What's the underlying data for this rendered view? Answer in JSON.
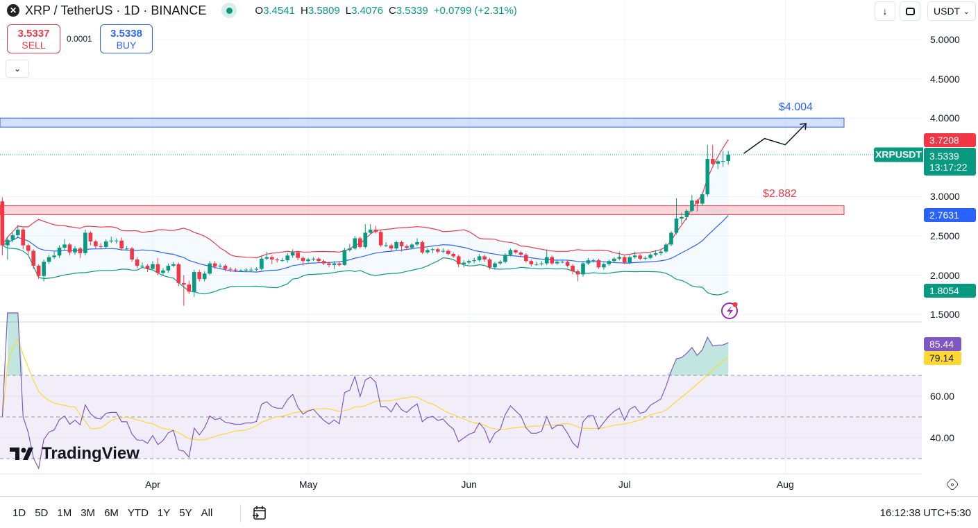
{
  "header": {
    "symbol_icon": "xrp-logo-icon",
    "title": "XRP / TetherUS · 1D · BINANCE",
    "market_status": "open",
    "ohlc": {
      "o_label": "O",
      "o": "3.4541",
      "h_label": "H",
      "h": "3.5809",
      "l_label": "L",
      "l": "3.4076",
      "c_label": "C",
      "c": "3.5339",
      "change": "+0.0799 (+2.31%)"
    }
  },
  "trade": {
    "sell_price": "3.5337",
    "sell_label": "SELL",
    "spread": "0.0001",
    "buy_price": "3.5338",
    "buy_label": "BUY"
  },
  "toolbar_right": {
    "download_icon": "arrow-down-icon",
    "fullscreen_icon": "fullscreen-icon",
    "currency": "USDT"
  },
  "colors": {
    "up": "#089981",
    "down": "#f23645",
    "bb_basis": "#2962ff",
    "bb_upper": "#f23645",
    "bb_lower": "#089981",
    "rsi": "#7e57c2",
    "rsi_ma": "#fdd835",
    "resistance_zone": "#2962ff",
    "support_zone": "#f23645"
  },
  "axis_tags": {
    "bb_upper": "3.7208",
    "symbol": "XRPUSDT",
    "last": "3.5339",
    "countdown": "13:17:22",
    "bb_basis": "2.7631",
    "bb_lower": "1.8054",
    "rsi": "85.44",
    "rsi_ma": "79.14"
  },
  "annotations": {
    "resistance": {
      "label": "$4.004",
      "top": 4.0,
      "bottom": 3.885
    },
    "support": {
      "label": "$2.882",
      "top": 2.885,
      "bottom": 2.77
    },
    "projection_arrow": [
      [
        "07-24",
        3.55
      ],
      [
        "07-28",
        3.74
      ],
      [
        "08-01",
        3.66
      ],
      [
        "08-05",
        3.93
      ]
    ]
  },
  "time_axis": {
    "labels": [
      "Apr",
      "May",
      "Jun",
      "Jul",
      "Aug"
    ],
    "settings_icon": "gear-icon"
  },
  "bottom_bar": {
    "ranges": [
      "1D",
      "5D",
      "1M",
      "3M",
      "6M",
      "YTD",
      "1Y",
      "5Y",
      "All"
    ],
    "goto_icon": "calendar-goto-icon",
    "clock": "16:12:38 UTC+5:30"
  },
  "branding": {
    "text": "TradingView"
  },
  "chart_data": {
    "type": "candlestick",
    "indicators": [
      "Bollinger Bands (20, 2)",
      "RSI (14) with MA (14)"
    ],
    "price_ticks": [
      5.0,
      4.5,
      4.0,
      3.0,
      2.5,
      2.0,
      1.5
    ],
    "rsi_ticks": [
      60,
      40
    ],
    "rsi_levels": [
      70,
      50,
      30
    ],
    "ylim": [
      1.5,
      5.0
    ],
    "grid": true,
    "candles_format": [
      "date",
      "open",
      "high",
      "low",
      "close"
    ],
    "candles": [
      [
        "03-03",
        2.94,
        2.99,
        2.25,
        2.38
      ],
      [
        "03-04",
        2.38,
        2.49,
        2.2,
        2.45
      ],
      [
        "03-05",
        2.45,
        2.54,
        2.42,
        2.51
      ],
      [
        "03-06",
        2.51,
        2.64,
        2.48,
        2.58
      ],
      [
        "03-07",
        2.58,
        2.6,
        2.33,
        2.38
      ],
      [
        "03-08",
        2.38,
        2.4,
        2.26,
        2.31
      ],
      [
        "03-09",
        2.31,
        2.33,
        2.08,
        2.12
      ],
      [
        "03-10",
        2.12,
        2.14,
        1.95,
        1.99
      ],
      [
        "03-11",
        1.99,
        2.2,
        1.92,
        2.17
      ],
      [
        "03-12",
        2.17,
        2.26,
        2.14,
        2.23
      ],
      [
        "03-13",
        2.23,
        2.3,
        2.21,
        2.25
      ],
      [
        "03-14",
        2.25,
        2.38,
        2.22,
        2.35
      ],
      [
        "03-15",
        2.35,
        2.46,
        2.32,
        2.39
      ],
      [
        "03-16",
        2.39,
        2.41,
        2.25,
        2.29
      ],
      [
        "03-17",
        2.29,
        2.37,
        2.26,
        2.34
      ],
      [
        "03-18",
        2.34,
        2.36,
        2.22,
        2.28
      ],
      [
        "03-19",
        2.28,
        2.58,
        2.25,
        2.54
      ],
      [
        "03-20",
        2.54,
        2.56,
        2.38,
        2.43
      ],
      [
        "03-21",
        2.43,
        2.45,
        2.34,
        2.37
      ],
      [
        "03-22",
        2.37,
        2.41,
        2.34,
        2.36
      ],
      [
        "03-23",
        2.36,
        2.46,
        2.34,
        2.43
      ],
      [
        "03-24",
        2.43,
        2.49,
        2.41,
        2.44
      ],
      [
        "03-25",
        2.44,
        2.47,
        2.4,
        2.44
      ],
      [
        "03-26",
        2.44,
        2.48,
        2.31,
        2.34
      ],
      [
        "03-27",
        2.34,
        2.37,
        2.31,
        2.34
      ],
      [
        "03-28",
        2.34,
        2.36,
        2.17,
        2.2
      ],
      [
        "03-29",
        2.2,
        2.23,
        2.09,
        2.12
      ],
      [
        "03-30",
        2.12,
        2.16,
        2.09,
        2.12
      ],
      [
        "03-31",
        2.12,
        2.14,
        2.04,
        2.08
      ],
      [
        "04-01",
        2.08,
        2.18,
        2.06,
        2.14
      ],
      [
        "04-02",
        2.14,
        2.22,
        2.0,
        2.03
      ],
      [
        "04-03",
        2.03,
        2.09,
        2.0,
        2.06
      ],
      [
        "04-04",
        2.06,
        2.15,
        2.03,
        2.12
      ],
      [
        "04-05",
        2.12,
        2.17,
        2.1,
        2.14
      ],
      [
        "04-06",
        2.14,
        2.16,
        1.86,
        1.9
      ],
      [
        "04-07",
        1.9,
        2.0,
        1.61,
        1.88
      ],
      [
        "04-08",
        1.88,
        1.93,
        1.76,
        1.79
      ],
      [
        "04-09",
        1.79,
        2.07,
        1.72,
        2.04
      ],
      [
        "04-10",
        2.04,
        2.07,
        1.92,
        1.95
      ],
      [
        "04-11",
        1.95,
        2.05,
        1.92,
        2.02
      ],
      [
        "04-12",
        2.02,
        2.18,
        2.0,
        2.15
      ],
      [
        "04-13",
        2.15,
        2.18,
        2.08,
        2.11
      ],
      [
        "04-14",
        2.11,
        2.15,
        2.09,
        2.12
      ],
      [
        "04-15",
        2.12,
        2.14,
        2.05,
        2.08
      ],
      [
        "04-16",
        2.08,
        2.1,
        2.04,
        2.07
      ],
      [
        "04-17",
        2.07,
        2.09,
        2.04,
        2.06
      ],
      [
        "04-18",
        2.06,
        2.08,
        2.04,
        2.06
      ],
      [
        "04-19",
        2.06,
        2.09,
        2.04,
        2.07
      ],
      [
        "04-20",
        2.07,
        2.1,
        2.05,
        2.07
      ],
      [
        "04-21",
        2.07,
        2.1,
        2.05,
        2.08
      ],
      [
        "04-22",
        2.08,
        2.24,
        2.06,
        2.21
      ],
      [
        "04-23",
        2.21,
        2.3,
        2.19,
        2.23
      ],
      [
        "04-24",
        2.23,
        2.25,
        2.14,
        2.2
      ],
      [
        "04-25",
        2.2,
        2.22,
        2.16,
        2.19
      ],
      [
        "04-26",
        2.19,
        2.22,
        2.17,
        2.19
      ],
      [
        "04-27",
        2.19,
        2.28,
        2.16,
        2.25
      ],
      [
        "04-28",
        2.25,
        2.33,
        2.22,
        2.29
      ],
      [
        "04-29",
        2.29,
        2.31,
        2.19,
        2.22
      ],
      [
        "04-30",
        2.22,
        2.24,
        2.12,
        2.18
      ],
      [
        "05-01",
        2.18,
        2.22,
        2.16,
        2.2
      ],
      [
        "05-02",
        2.2,
        2.23,
        2.18,
        2.21
      ],
      [
        "05-03",
        2.21,
        2.23,
        2.16,
        2.18
      ],
      [
        "05-04",
        2.18,
        2.2,
        2.13,
        2.15
      ],
      [
        "05-05",
        2.15,
        2.17,
        2.1,
        2.13
      ],
      [
        "05-06",
        2.13,
        2.18,
        2.08,
        2.15
      ],
      [
        "05-07",
        2.15,
        2.17,
        2.11,
        2.13
      ],
      [
        "05-08",
        2.13,
        2.35,
        2.12,
        2.32
      ],
      [
        "05-09",
        2.32,
        2.4,
        2.3,
        2.34
      ],
      [
        "05-10",
        2.34,
        2.5,
        2.32,
        2.47
      ],
      [
        "05-11",
        2.47,
        2.49,
        2.34,
        2.36
      ],
      [
        "05-12",
        2.36,
        2.65,
        2.34,
        2.54
      ],
      [
        "05-13",
        2.54,
        2.65,
        2.52,
        2.58
      ],
      [
        "05-14",
        2.58,
        2.63,
        2.53,
        2.55
      ],
      [
        "05-15",
        2.55,
        2.57,
        2.36,
        2.38
      ],
      [
        "05-16",
        2.38,
        2.42,
        2.36,
        2.38
      ],
      [
        "05-17",
        2.38,
        2.4,
        2.31,
        2.34
      ],
      [
        "05-18",
        2.34,
        2.44,
        2.32,
        2.42
      ],
      [
        "05-19",
        2.42,
        2.44,
        2.3,
        2.37
      ],
      [
        "05-20",
        2.37,
        2.39,
        2.33,
        2.35
      ],
      [
        "05-21",
        2.35,
        2.41,
        2.33,
        2.39
      ],
      [
        "05-22",
        2.39,
        2.47,
        2.37,
        2.42
      ],
      [
        "05-23",
        2.42,
        2.44,
        2.27,
        2.29
      ],
      [
        "05-24",
        2.29,
        2.34,
        2.27,
        2.32
      ],
      [
        "05-25",
        2.32,
        2.35,
        2.28,
        2.33
      ],
      [
        "05-26",
        2.33,
        2.35,
        2.28,
        2.3
      ],
      [
        "05-27",
        2.3,
        2.34,
        2.28,
        2.31
      ],
      [
        "05-28",
        2.31,
        2.33,
        2.25,
        2.27
      ],
      [
        "05-29",
        2.27,
        2.29,
        2.22,
        2.24
      ],
      [
        "05-30",
        2.24,
        2.26,
        2.1,
        2.14
      ],
      [
        "05-31",
        2.14,
        2.19,
        2.1,
        2.16
      ],
      [
        "06-01",
        2.16,
        2.2,
        2.14,
        2.18
      ],
      [
        "06-02",
        2.18,
        2.22,
        2.15,
        2.19
      ],
      [
        "06-03",
        2.19,
        2.27,
        2.17,
        2.24
      ],
      [
        "06-04",
        2.24,
        2.26,
        2.17,
        2.2
      ],
      [
        "06-05",
        2.2,
        2.22,
        2.07,
        2.1
      ],
      [
        "06-06",
        2.1,
        2.17,
        2.07,
        2.15
      ],
      [
        "06-07",
        2.15,
        2.19,
        2.13,
        2.17
      ],
      [
        "06-08",
        2.17,
        2.28,
        2.15,
        2.26
      ],
      [
        "06-09",
        2.26,
        2.34,
        2.24,
        2.32
      ],
      [
        "06-10",
        2.32,
        2.33,
        2.27,
        2.29
      ],
      [
        "06-11",
        2.29,
        2.31,
        2.24,
        2.26
      ],
      [
        "06-12",
        2.26,
        2.28,
        2.16,
        2.18
      ],
      [
        "06-13",
        2.18,
        2.2,
        2.11,
        2.14
      ],
      [
        "06-14",
        2.14,
        2.17,
        2.12,
        2.14
      ],
      [
        "06-15",
        2.14,
        2.18,
        2.12,
        2.15
      ],
      [
        "06-16",
        2.15,
        2.33,
        2.13,
        2.23
      ],
      [
        "06-17",
        2.23,
        2.25,
        2.13,
        2.15
      ],
      [
        "06-18",
        2.15,
        2.19,
        2.13,
        2.17
      ],
      [
        "06-19",
        2.17,
        2.19,
        2.15,
        2.17
      ],
      [
        "06-20",
        2.17,
        2.19,
        2.1,
        2.12
      ],
      [
        "06-21",
        2.12,
        2.14,
        2.01,
        2.05
      ],
      [
        "06-22",
        2.05,
        2.07,
        1.92,
        2.01
      ],
      [
        "06-23",
        2.01,
        2.18,
        1.98,
        2.15
      ],
      [
        "06-24",
        2.15,
        2.22,
        2.13,
        2.19
      ],
      [
        "06-25",
        2.19,
        2.21,
        2.16,
        2.19
      ],
      [
        "06-26",
        2.19,
        2.21,
        2.08,
        2.1
      ],
      [
        "06-27",
        2.1,
        2.16,
        2.07,
        2.14
      ],
      [
        "06-28",
        2.14,
        2.2,
        2.12,
        2.18
      ],
      [
        "06-29",
        2.18,
        2.23,
        2.16,
        2.21
      ],
      [
        "06-30",
        2.21,
        2.3,
        2.19,
        2.23
      ],
      [
        "07-01",
        2.23,
        2.25,
        2.14,
        2.16
      ],
      [
        "07-02",
        2.16,
        2.25,
        2.14,
        2.23
      ],
      [
        "07-03",
        2.23,
        2.3,
        2.21,
        2.25
      ],
      [
        "07-04",
        2.25,
        2.27,
        2.19,
        2.21
      ],
      [
        "07-05",
        2.21,
        2.24,
        2.19,
        2.22
      ],
      [
        "07-06",
        2.22,
        2.28,
        2.2,
        2.26
      ],
      [
        "07-07",
        2.26,
        2.32,
        2.24,
        2.28
      ],
      [
        "07-08",
        2.28,
        2.32,
        2.25,
        2.3
      ],
      [
        "07-09",
        2.3,
        2.41,
        2.28,
        2.39
      ],
      [
        "07-10",
        2.39,
        2.56,
        2.37,
        2.54
      ],
      [
        "07-11",
        2.54,
        2.98,
        2.52,
        2.72
      ],
      [
        "07-12",
        2.72,
        2.8,
        2.65,
        2.74
      ],
      [
        "07-13",
        2.74,
        2.84,
        2.7,
        2.82
      ],
      [
        "07-14",
        2.82,
        3.02,
        2.8,
        2.95
      ],
      [
        "07-15",
        2.95,
        2.97,
        2.81,
        2.91
      ],
      [
        "07-16",
        2.91,
        3.05,
        2.88,
        3.03
      ],
      [
        "07-17",
        3.03,
        3.66,
        3.0,
        3.48
      ],
      [
        "07-18",
        3.48,
        3.66,
        3.4,
        3.42
      ],
      [
        "07-19",
        3.42,
        3.47,
        3.35,
        3.45
      ],
      [
        "07-20",
        3.45,
        3.58,
        3.38,
        3.4541
      ],
      [
        "07-21",
        3.4541,
        3.5809,
        3.4076,
        3.5339
      ]
    ]
  }
}
